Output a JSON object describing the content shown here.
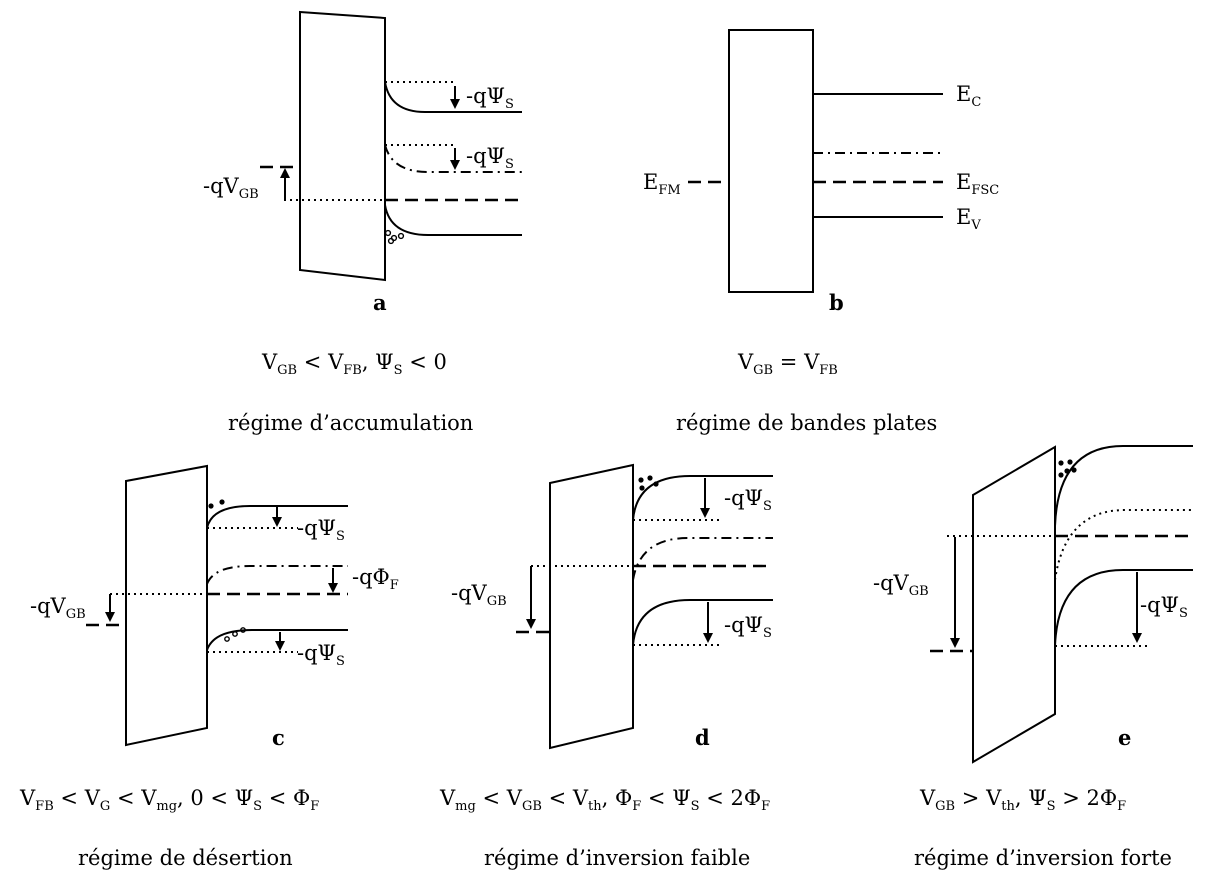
{
  "panels": {
    "a": {
      "letter": "a",
      "v_minus": "-qV",
      "v_sub": "GB",
      "psi_top": "-qΨ",
      "psi_top_sub": "S",
      "psi_mid": "-qΨ",
      "psi_mid_sub": "S",
      "cond": {
        "t1": "V",
        "s1": "GB",
        "t2": " < V",
        "s2": "FB",
        "t3": ", Ψ",
        "s3": "S",
        "t4": " < 0"
      },
      "regime": "régime d’accumulation"
    },
    "b": {
      "letter": "b",
      "efm": "E",
      "efm_sub": "FM",
      "ec": "E",
      "ec_sub": "C",
      "efsc": "E",
      "efsc_sub": "FSC",
      "ev": "E",
      "ev_sub": "V",
      "cond": {
        "t1": "V",
        "s1": "GB",
        "t2": " = V",
        "s2": "FB"
      },
      "regime": "régime de bandes plates"
    },
    "c": {
      "letter": "c",
      "v_minus": "-qV",
      "v_sub": "GB",
      "psi_top": "-qΨ",
      "psi_top_sub": "S",
      "phi": "-qΦ",
      "phi_sub": "F",
      "psi_bot": "-qΨ",
      "psi_bot_sub": "S",
      "cond": {
        "t1": "V",
        "s1": "FB",
        "t2": " < V",
        "s2": "G",
        "t3": " < V",
        "s3": "mg",
        "t4": ", 0 < Ψ",
        "s4": "S",
        "t5": " < Φ",
        "s5": "F"
      },
      "regime": "régime de désertion"
    },
    "d": {
      "letter": "d",
      "v_minus": "-qV",
      "v_sub": "GB",
      "psi_top": "-qΨ",
      "psi_top_sub": "S",
      "psi_bot": "-qΨ",
      "psi_bot_sub": "S",
      "cond": {
        "t1": "V",
        "s1": "mg",
        "t2": " < V",
        "s2": "GB",
        "t3": " < V",
        "s3": "th",
        "t4": ", Φ",
        "s4": "F",
        "t5": " < Ψ",
        "s5": "S",
        "t6": " < 2Φ",
        "s6": "F"
      },
      "regime": "régime d’inversion faible"
    },
    "e": {
      "letter": "e",
      "v_minus": "-qV",
      "v_sub": "GB",
      "psi": "-qΨ",
      "psi_sub": "S",
      "cond": {
        "t1": "V",
        "s1": "GB",
        "t2": " > V",
        "s2": "th",
        "t3": ", Ψ",
        "s3": "S",
        "t4": " > 2Φ",
        "s4": "F"
      },
      "regime": "régime d’inversion forte"
    }
  }
}
